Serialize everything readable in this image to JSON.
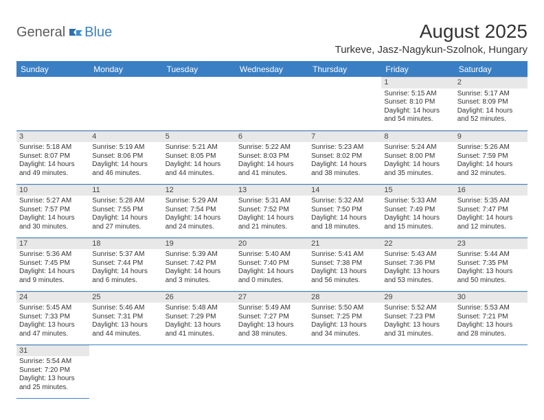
{
  "logo": {
    "general": "General",
    "blue": "Blue"
  },
  "title": "August 2025",
  "location": "Turkeve, Jasz-Nagykun-Szolnok, Hungary",
  "colors": {
    "header_bg": "#3a7fc4",
    "header_text": "#ffffff",
    "daynum_bg": "#e8e8e8",
    "border": "#3a7fc4",
    "text": "#333333"
  },
  "weekdays": [
    "Sunday",
    "Monday",
    "Tuesday",
    "Wednesday",
    "Thursday",
    "Friday",
    "Saturday"
  ],
  "weeks": [
    [
      null,
      null,
      null,
      null,
      null,
      {
        "n": "1",
        "rise": "Sunrise: 5:15 AM",
        "set": "Sunset: 8:10 PM",
        "d1": "Daylight: 14 hours",
        "d2": "and 54 minutes."
      },
      {
        "n": "2",
        "rise": "Sunrise: 5:17 AM",
        "set": "Sunset: 8:09 PM",
        "d1": "Daylight: 14 hours",
        "d2": "and 52 minutes."
      }
    ],
    [
      {
        "n": "3",
        "rise": "Sunrise: 5:18 AM",
        "set": "Sunset: 8:07 PM",
        "d1": "Daylight: 14 hours",
        "d2": "and 49 minutes."
      },
      {
        "n": "4",
        "rise": "Sunrise: 5:19 AM",
        "set": "Sunset: 8:06 PM",
        "d1": "Daylight: 14 hours",
        "d2": "and 46 minutes."
      },
      {
        "n": "5",
        "rise": "Sunrise: 5:21 AM",
        "set": "Sunset: 8:05 PM",
        "d1": "Daylight: 14 hours",
        "d2": "and 44 minutes."
      },
      {
        "n": "6",
        "rise": "Sunrise: 5:22 AM",
        "set": "Sunset: 8:03 PM",
        "d1": "Daylight: 14 hours",
        "d2": "and 41 minutes."
      },
      {
        "n": "7",
        "rise": "Sunrise: 5:23 AM",
        "set": "Sunset: 8:02 PM",
        "d1": "Daylight: 14 hours",
        "d2": "and 38 minutes."
      },
      {
        "n": "8",
        "rise": "Sunrise: 5:24 AM",
        "set": "Sunset: 8:00 PM",
        "d1": "Daylight: 14 hours",
        "d2": "and 35 minutes."
      },
      {
        "n": "9",
        "rise": "Sunrise: 5:26 AM",
        "set": "Sunset: 7:59 PM",
        "d1": "Daylight: 14 hours",
        "d2": "and 32 minutes."
      }
    ],
    [
      {
        "n": "10",
        "rise": "Sunrise: 5:27 AM",
        "set": "Sunset: 7:57 PM",
        "d1": "Daylight: 14 hours",
        "d2": "and 30 minutes."
      },
      {
        "n": "11",
        "rise": "Sunrise: 5:28 AM",
        "set": "Sunset: 7:55 PM",
        "d1": "Daylight: 14 hours",
        "d2": "and 27 minutes."
      },
      {
        "n": "12",
        "rise": "Sunrise: 5:29 AM",
        "set": "Sunset: 7:54 PM",
        "d1": "Daylight: 14 hours",
        "d2": "and 24 minutes."
      },
      {
        "n": "13",
        "rise": "Sunrise: 5:31 AM",
        "set": "Sunset: 7:52 PM",
        "d1": "Daylight: 14 hours",
        "d2": "and 21 minutes."
      },
      {
        "n": "14",
        "rise": "Sunrise: 5:32 AM",
        "set": "Sunset: 7:50 PM",
        "d1": "Daylight: 14 hours",
        "d2": "and 18 minutes."
      },
      {
        "n": "15",
        "rise": "Sunrise: 5:33 AM",
        "set": "Sunset: 7:49 PM",
        "d1": "Daylight: 14 hours",
        "d2": "and 15 minutes."
      },
      {
        "n": "16",
        "rise": "Sunrise: 5:35 AM",
        "set": "Sunset: 7:47 PM",
        "d1": "Daylight: 14 hours",
        "d2": "and 12 minutes."
      }
    ],
    [
      {
        "n": "17",
        "rise": "Sunrise: 5:36 AM",
        "set": "Sunset: 7:45 PM",
        "d1": "Daylight: 14 hours",
        "d2": "and 9 minutes."
      },
      {
        "n": "18",
        "rise": "Sunrise: 5:37 AM",
        "set": "Sunset: 7:44 PM",
        "d1": "Daylight: 14 hours",
        "d2": "and 6 minutes."
      },
      {
        "n": "19",
        "rise": "Sunrise: 5:39 AM",
        "set": "Sunset: 7:42 PM",
        "d1": "Daylight: 14 hours",
        "d2": "and 3 minutes."
      },
      {
        "n": "20",
        "rise": "Sunrise: 5:40 AM",
        "set": "Sunset: 7:40 PM",
        "d1": "Daylight: 14 hours",
        "d2": "and 0 minutes."
      },
      {
        "n": "21",
        "rise": "Sunrise: 5:41 AM",
        "set": "Sunset: 7:38 PM",
        "d1": "Daylight: 13 hours",
        "d2": "and 56 minutes."
      },
      {
        "n": "22",
        "rise": "Sunrise: 5:43 AM",
        "set": "Sunset: 7:36 PM",
        "d1": "Daylight: 13 hours",
        "d2": "and 53 minutes."
      },
      {
        "n": "23",
        "rise": "Sunrise: 5:44 AM",
        "set": "Sunset: 7:35 PM",
        "d1": "Daylight: 13 hours",
        "d2": "and 50 minutes."
      }
    ],
    [
      {
        "n": "24",
        "rise": "Sunrise: 5:45 AM",
        "set": "Sunset: 7:33 PM",
        "d1": "Daylight: 13 hours",
        "d2": "and 47 minutes."
      },
      {
        "n": "25",
        "rise": "Sunrise: 5:46 AM",
        "set": "Sunset: 7:31 PM",
        "d1": "Daylight: 13 hours",
        "d2": "and 44 minutes."
      },
      {
        "n": "26",
        "rise": "Sunrise: 5:48 AM",
        "set": "Sunset: 7:29 PM",
        "d1": "Daylight: 13 hours",
        "d2": "and 41 minutes."
      },
      {
        "n": "27",
        "rise": "Sunrise: 5:49 AM",
        "set": "Sunset: 7:27 PM",
        "d1": "Daylight: 13 hours",
        "d2": "and 38 minutes."
      },
      {
        "n": "28",
        "rise": "Sunrise: 5:50 AM",
        "set": "Sunset: 7:25 PM",
        "d1": "Daylight: 13 hours",
        "d2": "and 34 minutes."
      },
      {
        "n": "29",
        "rise": "Sunrise: 5:52 AM",
        "set": "Sunset: 7:23 PM",
        "d1": "Daylight: 13 hours",
        "d2": "and 31 minutes."
      },
      {
        "n": "30",
        "rise": "Sunrise: 5:53 AM",
        "set": "Sunset: 7:21 PM",
        "d1": "Daylight: 13 hours",
        "d2": "and 28 minutes."
      }
    ],
    [
      {
        "n": "31",
        "rise": "Sunrise: 5:54 AM",
        "set": "Sunset: 7:20 PM",
        "d1": "Daylight: 13 hours",
        "d2": "and 25 minutes."
      },
      null,
      null,
      null,
      null,
      null,
      null
    ]
  ]
}
